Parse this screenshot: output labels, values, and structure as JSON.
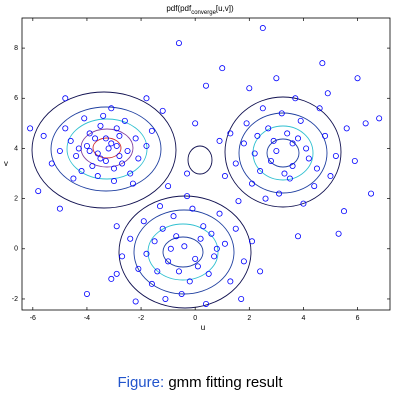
{
  "chart_data": {
    "type": "scatter",
    "title": {
      "main": "pdf(pdf",
      "sub": "converge",
      "end": "[u,v])"
    },
    "xlabel": "u",
    "ylabel": "v",
    "caption": {
      "label": "Figure:",
      "text": "gmm fitting result"
    },
    "xlim": [
      -6.4,
      7.2
    ],
    "ylim": [
      -2.44,
      9.2
    ],
    "xticks": [
      -6,
      -4,
      -2,
      0,
      2,
      4,
      6
    ],
    "yticks": [
      -2,
      0,
      2,
      4,
      6,
      8
    ],
    "color": "#0000ff",
    "x": [
      -3.1,
      -3.6,
      -2.8,
      -4.0,
      -3.3,
      -2.5,
      -3.9,
      -3.0,
      -4.4,
      -3.5,
      -2.7,
      -3.8,
      -2.2,
      -4.6,
      -3.2,
      -2.9,
      -3.7,
      -4.2,
      -2.4,
      -3.4,
      -5.0,
      -1.8,
      -3.0,
      -4.8,
      -2.6,
      -3.6,
      -4.1,
      -2.1,
      -5.3,
      -3.3,
      -2.8,
      -3.9,
      -4.5,
      -1.6,
      -3.1,
      -5.6,
      -2.3,
      -3.5,
      -4.3,
      -2.9,
      3.0,
      3.8,
      2.4,
      4.2,
      2.7,
      3.5,
      1.8,
      4.8,
      3.2,
      2.1,
      4.4,
      3.6,
      2.9,
      5.2,
      1.5,
      3.9,
      2.5,
      4.6,
      3.1,
      1.9,
      5.6,
      2.2,
      4.1,
      3.4,
      2.8,
      5.0,
      1.3,
      3.7,
      4.9,
      2.0,
      3.3,
      4.5,
      2.6,
      5.9,
      1.1,
      3.0,
      6.3,
      4.0,
      2.3,
      3.6,
      -0.4,
      -1.0,
      0.2,
      -1.5,
      0.7,
      -0.6,
      -1.8,
      0.3,
      -0.2,
      -1.2,
      1.1,
      -2.1,
      0.5,
      -0.8,
      1.5,
      -1.6,
      -0.1,
      1.8,
      -2.4,
      0.9,
      -0.5,
      -1.3,
      2.1,
      -2.7,
      0.0,
      -0.9,
      0.6,
      -1.9,
      1.3,
      -0.3,
      -2.9,
      2.4,
      -1.1,
      0.4,
      1.6,
      -3.1,
      -0.7,
      0.1,
      -1.4,
      0.8,
      -6.1,
      -5.8,
      -0.6,
      2.5,
      0.4,
      -1.2,
      6.8,
      6.5,
      -4.0,
      -2.2,
      5.3,
      4.7,
      0.9,
      -0.3,
      1.0,
      -1.8,
      6.0,
      -5.0,
      3.8,
      -4.8,
      1.7,
      -2.9,
      5.5,
      0.0,
      -1.0
    ],
    "values": [
      4.2,
      3.8,
      4.5,
      4.1,
      3.5,
      3.9,
      4.6,
      3.2,
      3.7,
      4.9,
      3.4,
      3.3,
      4.4,
      4.3,
      4.0,
      4.8,
      4.4,
      3.1,
      3.0,
      5.3,
      3.9,
      4.1,
      2.7,
      4.8,
      5.1,
      2.9,
      5.2,
      3.6,
      3.4,
      4.4,
      3.7,
      3.9,
      2.8,
      4.7,
      5.6,
      4.5,
      2.6,
      3.6,
      4.0,
      4.1,
      3.9,
      4.4,
      3.1,
      3.6,
      4.8,
      2.8,
      4.2,
      4.5,
      5.4,
      2.6,
      2.5,
      3.3,
      4.3,
      3.7,
      3.4,
      5.1,
      5.6,
      5.6,
      2.2,
      5.0,
      4.8,
      3.8,
      4.0,
      4.6,
      3.5,
      2.9,
      4.6,
      6.0,
      6.2,
      6.4,
      3.0,
      3.2,
      2.0,
      3.5,
      2.9,
      6.8,
      5.0,
      1.8,
      4.5,
      4.2,
      0.1,
      -0.5,
      0.4,
      0.3,
      -0.3,
      -0.9,
      -0.2,
      0.9,
      -1.3,
      0.8,
      0.2,
      -0.8,
      -1.0,
      1.3,
      0.8,
      -1.4,
      1.6,
      -0.5,
      0.4,
      1.4,
      -1.8,
      1.7,
      0.3,
      -0.3,
      -0.4,
      0.0,
      0.6,
      1.1,
      -1.3,
      2.1,
      0.9,
      -0.9,
      -2.0,
      -2.2,
      1.9,
      -1.2,
      0.5,
      -0.7,
      -0.9,
      0.0,
      4.8,
      2.3,
      8.2,
      8.8,
      6.5,
      5.5,
      5.2,
      2.2,
      -1.8,
      -2.1,
      0.6,
      7.4,
      4.3,
      3.0,
      7.2,
      6.0,
      6.8,
      1.6,
      0.5,
      6.0,
      -2.0,
      -1.0,
      1.5,
      5.0,
      2.5
    ]
  }
}
